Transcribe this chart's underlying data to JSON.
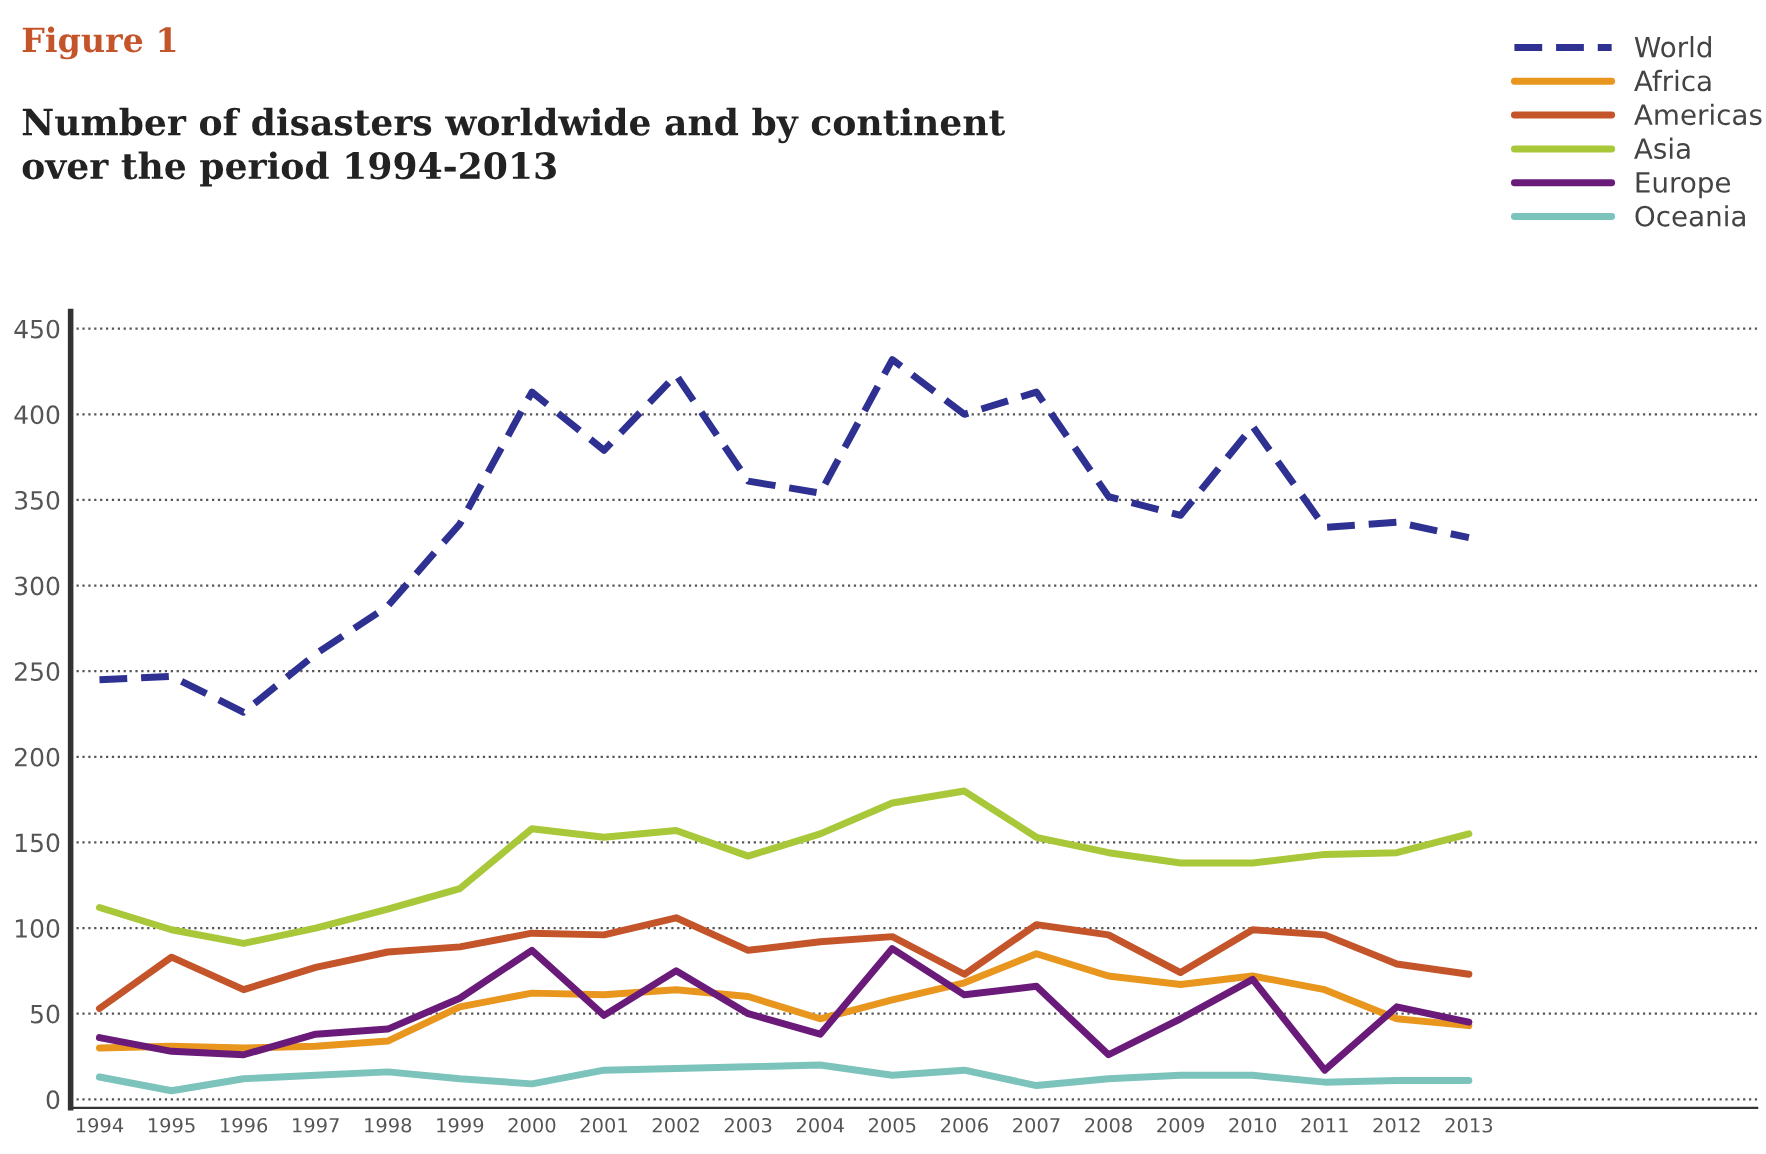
{
  "chart_data": {
    "type": "line",
    "title": "Figure 1",
    "subtitle": "Number of disasters worldwide and by continent\nover the period 1994-2013",
    "categories": [
      "1994",
      "1995",
      "1996",
      "1997",
      "1998",
      "1999",
      "2000",
      "2001",
      "2002",
      "2003",
      "2004",
      "2005",
      "2006",
      "2007",
      "2008",
      "2009",
      "2010",
      "2011",
      "2012",
      "2013"
    ],
    "series": [
      {
        "name": "World",
        "color": "#2e3192",
        "line_style": "dashed",
        "values": [
          245,
          247,
          226,
          260,
          288,
          336,
          413,
          379,
          423,
          361,
          354,
          432,
          400,
          413,
          352,
          341,
          393,
          334,
          337,
          328
        ]
      },
      {
        "name": "Africa",
        "color": "#e8961e",
        "values": [
          30,
          31,
          30,
          31,
          34,
          54,
          62,
          61,
          64,
          60,
          47,
          58,
          68,
          85,
          72,
          67,
          72,
          64,
          47,
          43
        ]
      },
      {
        "name": "Americas",
        "color": "#c4552b",
        "values": [
          53,
          83,
          64,
          77,
          86,
          89,
          97,
          96,
          106,
          87,
          92,
          95,
          73,
          102,
          96,
          74,
          99,
          96,
          79,
          73
        ]
      },
      {
        "name": "Asia",
        "color": "#a8c83a",
        "values": [
          112,
          99,
          91,
          100,
          111,
          123,
          158,
          153,
          157,
          142,
          155,
          173,
          180,
          153,
          144,
          138,
          138,
          143,
          144,
          155
        ]
      },
      {
        "name": "Europe",
        "color": "#6a1b7a",
        "values": [
          36,
          28,
          26,
          38,
          41,
          59,
          87,
          49,
          75,
          50,
          38,
          88,
          61,
          66,
          26,
          47,
          70,
          17,
          54,
          45
        ]
      },
      {
        "name": "Oceania",
        "color": "#7cc3bc",
        "values": [
          13,
          5,
          12,
          14,
          16,
          12,
          9,
          17,
          18,
          19,
          20,
          14,
          17,
          8,
          12,
          14,
          14,
          10,
          11,
          11
        ]
      }
    ],
    "ylim": [
      -5,
      460
    ],
    "yticks": [
      0,
      50,
      100,
      150,
      200,
      250,
      300,
      350,
      400,
      450
    ],
    "grid": "y",
    "legend": "top right",
    "line_style": "solid"
  }
}
